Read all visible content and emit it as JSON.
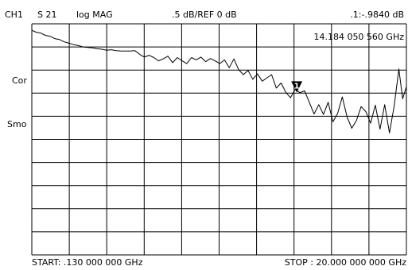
{
  "header": {
    "channel": "CH1",
    "parameter": "S 21",
    "format": "log MAG",
    "scale": ".5 dB/REF 0 dB",
    "marker_readout": ".1:-.9840 dB",
    "marker_frequency": "14.184 050 560 GHz"
  },
  "side_labels": {
    "correction": "Cor",
    "smoothing": "Smo"
  },
  "footer": {
    "start": "START: .130 000 000 GHz",
    "stop": "STOP : 20.000 000 000 GHz"
  },
  "colors": {
    "background": "#ffffff",
    "grid": "#000000",
    "trace": "#000000",
    "text": "#000000"
  },
  "chart_data": {
    "type": "line",
    "x_unit": "GHz",
    "y_unit": "dB",
    "xlim": [
      0.13,
      20.0
    ],
    "ylim": [
      -4.5,
      0.5
    ],
    "grid": "10x10",
    "marker": {
      "label": "1",
      "x": 14.184,
      "y": -0.984
    },
    "series": [
      {
        "x": [
          0.13,
          0.35,
          0.6,
          0.85,
          1.1,
          1.35,
          1.6,
          1.85,
          2.1,
          2.35,
          2.6,
          2.85,
          3.1,
          3.35,
          3.6,
          3.85,
          4.1,
          4.35,
          4.6,
          4.85,
          5.1,
          5.35,
          5.6,
          5.85,
          6.1,
          6.35,
          6.6,
          6.85,
          7.1,
          7.35,
          7.6,
          7.85,
          8.1,
          8.35,
          8.6,
          8.85,
          9.1,
          9.35,
          9.6,
          9.85,
          10.1,
          10.35,
          10.6,
          10.85,
          11.1,
          11.35,
          11.6,
          11.85,
          12.1,
          12.35,
          12.6,
          12.85,
          13.1,
          13.35,
          13.6,
          13.85,
          14.1,
          14.35,
          14.6,
          14.85,
          15.1,
          15.35,
          15.6,
          15.85,
          16.1,
          16.35,
          16.6,
          16.85,
          17.1,
          17.35,
          17.6,
          17.85,
          18.1,
          18.35,
          18.6,
          18.85,
          19.1,
          19.35,
          19.6,
          19.8,
          20.0
        ],
        "y": [
          0.36,
          0.32,
          0.3,
          0.25,
          0.23,
          0.18,
          0.16,
          0.11,
          0.08,
          0.05,
          0.03,
          0.0,
          -0.01,
          -0.02,
          -0.04,
          -0.05,
          -0.07,
          -0.06,
          -0.08,
          -0.09,
          -0.09,
          -0.09,
          -0.08,
          -0.16,
          -0.22,
          -0.18,
          -0.23,
          -0.3,
          -0.26,
          -0.2,
          -0.34,
          -0.23,
          -0.3,
          -0.36,
          -0.23,
          -0.28,
          -0.22,
          -0.32,
          -0.25,
          -0.3,
          -0.36,
          -0.28,
          -0.45,
          -0.26,
          -0.49,
          -0.6,
          -0.51,
          -0.7,
          -0.58,
          -0.74,
          -0.67,
          -0.6,
          -0.89,
          -0.78,
          -0.98,
          -1.1,
          -0.92,
          -0.99,
          -0.95,
          -1.2,
          -1.45,
          -1.25,
          -1.46,
          -1.2,
          -1.62,
          -1.44,
          -1.08,
          -1.51,
          -1.76,
          -1.59,
          -1.29,
          -1.4,
          -1.65,
          -1.26,
          -1.78,
          -1.25,
          -1.86,
          -1.28,
          -0.48,
          -1.12,
          -0.86
        ]
      }
    ]
  }
}
